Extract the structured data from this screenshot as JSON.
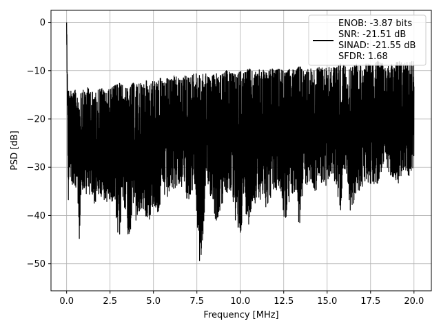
{
  "chart_data": {
    "type": "line",
    "xlabel": "Frequency [MHz]",
    "ylabel": "PSD [dB]",
    "xlim": [
      -0.9,
      21.0
    ],
    "ylim": [
      -55.6,
      2.5
    ],
    "xticks": [
      0.0,
      2.5,
      5.0,
      7.5,
      10.0,
      12.5,
      15.0,
      17.5,
      20.0
    ],
    "xtick_labels": [
      "0.0",
      "2.5",
      "5.0",
      "7.5",
      "10.0",
      "12.5",
      "15.0",
      "17.5",
      "20.0"
    ],
    "yticks": [
      0,
      -10,
      -20,
      -30,
      -40,
      -50
    ],
    "ytick_labels": [
      "0",
      "−10",
      "−20",
      "−30",
      "−40",
      "−50"
    ],
    "grid": true,
    "legend_position": "top-right",
    "legend_lines": [
      "ENOB: -3.87 bits",
      "SNR: -21.51 dB",
      "SINAD: -21.55 dB",
      "SFDR: 1.68"
    ],
    "series_color": "#000000",
    "grid_color": "#b0b0b0",
    "series": [
      {
        "x": [
          0.0,
          0.02,
          0.05,
          0.1,
          0.15,
          0.2,
          0.25,
          0.3,
          0.4,
          0.5,
          0.6,
          0.75,
          0.9,
          1.0,
          1.2,
          1.4,
          1.6,
          1.8,
          2.0,
          2.2,
          2.4,
          2.6,
          2.8,
          3.0,
          3.2,
          3.4,
          3.6,
          3.8,
          4.0,
          4.2,
          4.4,
          4.6,
          4.8,
          5.0,
          5.2,
          5.4,
          5.6,
          5.8,
          6.0,
          6.2,
          6.4,
          6.6,
          6.8,
          7.0,
          7.2,
          7.4,
          7.7,
          8.0,
          8.2,
          8.4,
          8.6,
          8.9,
          9.2,
          9.5,
          9.8,
          10.0,
          10.2,
          10.5,
          10.8,
          11.0,
          11.2,
          11.5,
          11.8,
          12.0,
          12.3,
          12.6,
          12.9,
          13.2,
          13.4,
          13.7,
          14.0,
          14.3,
          14.6,
          14.9,
          15.2,
          15.5,
          15.8,
          16.1,
          16.4,
          16.7,
          17.0,
          17.3,
          17.6,
          17.9,
          18.2,
          18.5,
          18.8,
          19.1,
          19.4,
          19.7,
          20.0
        ],
        "upper": [
          0.0,
          -3.0,
          -8.0,
          -14.0,
          -13.5,
          -14.5,
          -14.0,
          -15.0,
          -14.5,
          -14.0,
          -15.0,
          -14.5,
          -13.5,
          -14.5,
          -13.5,
          -14.0,
          -15.0,
          -14.0,
          -13.5,
          -14.5,
          -14.0,
          -13.5,
          -13.0,
          -12.5,
          -13.0,
          -13.5,
          -14.0,
          -12.5,
          -13.0,
          -12.5,
          -13.0,
          -12.0,
          -13.0,
          -12.0,
          -12.5,
          -11.5,
          -12.5,
          -11.5,
          -12.0,
          -11.0,
          -11.5,
          -12.0,
          -11.0,
          -11.5,
          -11.0,
          -10.5,
          -11.0,
          -10.5,
          -11.5,
          -11.0,
          -10.5,
          -11.0,
          -10.0,
          -10.5,
          -11.0,
          -10.0,
          -10.5,
          -9.5,
          -10.5,
          -10.0,
          -9.5,
          -10.5,
          -9.5,
          -10.0,
          -9.5,
          -10.5,
          -9.5,
          -10.0,
          -9.0,
          -10.0,
          -9.5,
          -10.0,
          -9.0,
          -9.5,
          -9.0,
          -9.5,
          -8.5,
          -9.0,
          -9.5,
          -8.5,
          -9.0,
          -8.5,
          -9.0,
          -8.0,
          -8.5,
          -9.0,
          -8.5,
          -8.0,
          -8.5,
          -8.0,
          -8.0
        ],
        "lower": [
          -2.0,
          -10.0,
          -24.0,
          -38.5,
          -30.0,
          -33.0,
          -29.5,
          -34.5,
          -35.5,
          -36.5,
          -33.5,
          -46.5,
          -36.0,
          -37.0,
          -35.0,
          -37.0,
          -38.0,
          -36.0,
          -37.5,
          -38.5,
          -36.5,
          -37.0,
          -40.0,
          -47.5,
          -38.0,
          -39.0,
          -47.0,
          -38.0,
          -42.0,
          -40.0,
          -39.0,
          -40.5,
          -41.0,
          -38.0,
          -40.0,
          -38.5,
          -36.5,
          -37.0,
          -35.5,
          -35.0,
          -33.5,
          -34.5,
          -35.0,
          -37.5,
          -35.0,
          -36.0,
          -53.0,
          -36.5,
          -35.5,
          -37.0,
          -42.0,
          -38.5,
          -36.0,
          -35.5,
          -44.0,
          -44.5,
          -38.0,
          -42.0,
          -38.0,
          -36.0,
          -37.0,
          -38.5,
          -36.0,
          -35.0,
          -35.5,
          -42.5,
          -36.0,
          -35.0,
          -43.5,
          -34.0,
          -33.5,
          -35.5,
          -33.0,
          -34.0,
          -32.5,
          -34.0,
          -39.5,
          -32.5,
          -41.0,
          -36.0,
          -34.5,
          -33.0,
          -34.0,
          -33.5,
          -30.5,
          -31.5,
          -32.0,
          -33.5,
          -31.0,
          -32.0,
          -30.0
        ]
      }
    ]
  }
}
